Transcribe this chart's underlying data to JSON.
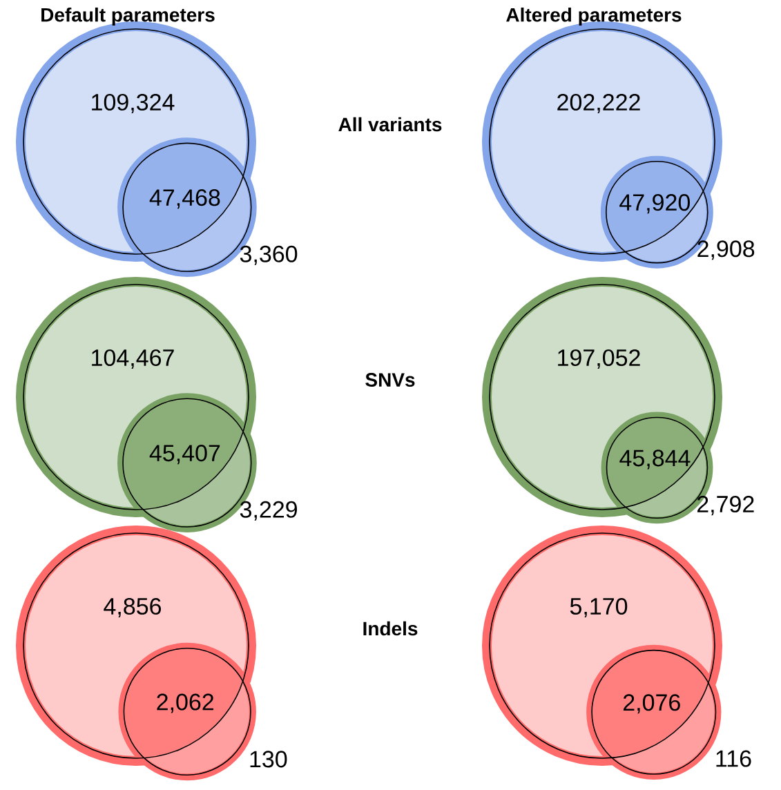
{
  "chart_data": [
    {
      "type": "other",
      "title": "Default parameters",
      "values": [
        109324,
        47468,
        3360
      ],
      "value_labels": [
        "109,324",
        "47,468",
        "3,360"
      ],
      "color": "#4f7fe0",
      "annotations": [
        "All variants"
      ]
    },
    {
      "type": "other",
      "title": "Altered parameters",
      "values": [
        202222,
        47920,
        2908
      ],
      "value_labels": [
        "202,222",
        "47,920",
        "2,908"
      ],
      "color": "#4f7fe0"
    },
    {
      "type": "other",
      "values": [
        104467,
        45407,
        3229
      ],
      "value_labels": [
        "104,467",
        "45,407",
        "3,229"
      ],
      "color": "#3f7a22",
      "annotations": [
        "SNVs"
      ]
    },
    {
      "type": "other",
      "values": [
        197052,
        45844,
        2792
      ],
      "value_labels": [
        "197,052",
        "45,844",
        "2,792"
      ],
      "color": "#3f7a22"
    },
    {
      "type": "other",
      "values": [
        4856,
        2062,
        130
      ],
      "value_labels": [
        "4,856",
        "2,062",
        "130"
      ],
      "color": "#ff2a2a",
      "annotations": [
        "Indels"
      ]
    },
    {
      "type": "other",
      "values": [
        5170,
        2076,
        116
      ],
      "value_labels": [
        "5,170",
        "2,076",
        "116"
      ],
      "color": "#ff2a2a"
    }
  ]
}
